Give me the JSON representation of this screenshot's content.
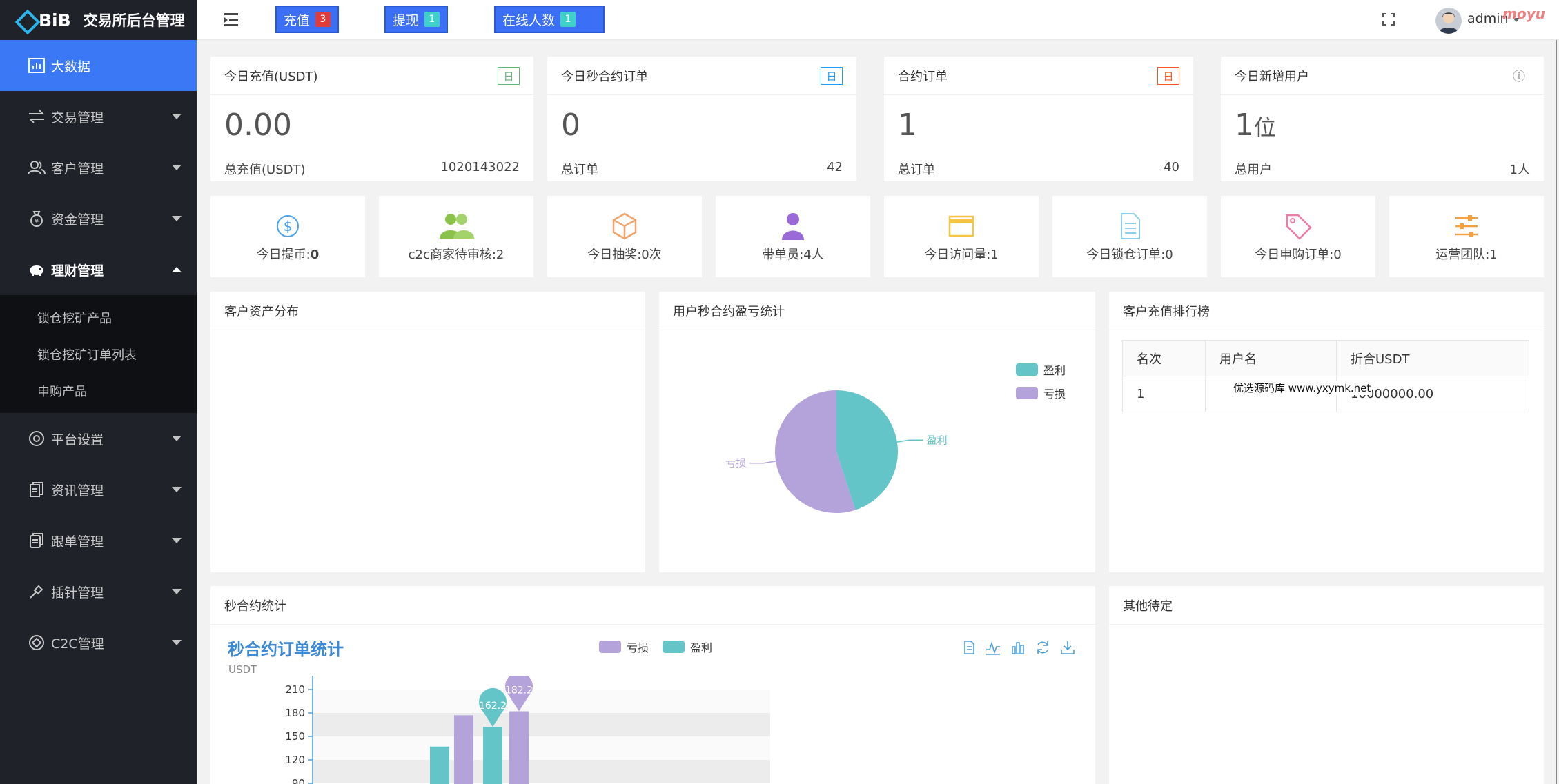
{
  "app": {
    "logo_text": "BiB",
    "title": "交易所后台管理"
  },
  "sidebar": {
    "items": [
      {
        "label": "大数据",
        "icon": "chart-icon"
      },
      {
        "label": "交易管理",
        "icon": "exchange-icon"
      },
      {
        "label": "客户管理",
        "icon": "users-icon"
      },
      {
        "label": "资金管理",
        "icon": "money-bag-icon"
      },
      {
        "label": "理财管理",
        "icon": "piggy-bank-icon"
      },
      {
        "label": "平台设置",
        "icon": "settings-icon"
      },
      {
        "label": "资讯管理",
        "icon": "news-icon"
      },
      {
        "label": "跟单管理",
        "icon": "document-icon"
      },
      {
        "label": "插针管理",
        "icon": "pin-icon"
      },
      {
        "label": "C2C管理",
        "icon": "c2c-icon"
      }
    ],
    "sub_items": [
      "锁仓挖矿产品",
      "锁仓挖矿订单列表",
      "申购产品"
    ]
  },
  "topbar": {
    "buttons": [
      {
        "label": "充值",
        "badge": "3",
        "badge_color": "#e23b3b"
      },
      {
        "label": "提现",
        "badge": "1",
        "badge_color": "#3fd1c8"
      },
      {
        "label": "在线人数",
        "badge": "1",
        "badge_color": "#3fd1c8"
      }
    ],
    "user": "admin",
    "corner_mark": "moyu"
  },
  "stats": [
    {
      "title": "今日充值(USDT)",
      "tag": "日",
      "tag_color": "#5fb878",
      "value": "0.00",
      "unit": "",
      "foot_label": "总充值(USDT)",
      "foot_value": "1020143022"
    },
    {
      "title": "今日秒合约订单",
      "tag": "日",
      "tag_color": "#1e9fff",
      "value": "0",
      "unit": "",
      "foot_label": "总订单",
      "foot_value": "42"
    },
    {
      "title": "合约订单",
      "tag": "日",
      "tag_color": "#ff5722",
      "value": "1",
      "unit": "",
      "foot_label": "总订单",
      "foot_value": "40"
    },
    {
      "title": "今日新增用户",
      "tag": "ⓘ",
      "tag_color": "#888888",
      "value": "1",
      "unit": "位",
      "foot_label": "总用户",
      "foot_value": "1人"
    }
  ],
  "mini_stats": [
    {
      "label": "今日提币:",
      "value": "0",
      "icon": "dollar-circle-icon",
      "color": "#4aa3f0"
    },
    {
      "label": "c2c商家待审核:2",
      "value": "",
      "icon": "group-icon",
      "color": "#8bc34a"
    },
    {
      "label": "今日抽奖:0次",
      "value": "",
      "icon": "box-icon",
      "color": "#f0a36b"
    },
    {
      "label": "带单员:4人",
      "value": "",
      "icon": "person-icon",
      "color": "#9b6ad9"
    },
    {
      "label": "今日访问量:1",
      "value": "",
      "icon": "card-icon",
      "color": "#f5c542"
    },
    {
      "label": "今日锁仓订单:0",
      "value": "",
      "icon": "list-doc-icon",
      "color": "#8ccfe8"
    },
    {
      "label": "今日申购订单:0",
      "value": "",
      "icon": "tag-icon",
      "color": "#f07aa8"
    },
    {
      "label": "运营团队:1",
      "value": "",
      "icon": "sliders-icon",
      "color": "#f5a142"
    }
  ],
  "panels": {
    "asset_distribution": "客户资产分布",
    "pnl_title": "用户秒合约盈亏统计",
    "ranking_title": "客户充值排行榜",
    "seconds_contract": "秒合约统计",
    "other_pending": "其他待定"
  },
  "ranking": {
    "headers": [
      "名次",
      "用户名",
      "折合USDT"
    ],
    "rows": [
      [
        "1",
        "",
        "10000000.00"
      ]
    ],
    "overlay_text": "优选源码库   www.yxymk.net"
  },
  "pie": {
    "legend": [
      "盈利",
      "亏损"
    ],
    "colors": [
      "#63c5c7",
      "#b4a2da"
    ],
    "values": [
      45,
      55
    ],
    "labels": {
      "profit": "盈利",
      "loss": "亏损"
    }
  },
  "chart_data": {
    "type": "bar",
    "title": "秒合约订单统计",
    "ylabel": "USDT",
    "legend": [
      "亏损",
      "盈利"
    ],
    "colors": {
      "亏损": "#b4a2da",
      "盈利": "#63c5c7"
    },
    "y_ticks": [
      210,
      180,
      150,
      120,
      90
    ],
    "ylim": [
      90,
      210
    ],
    "bars": [
      {
        "series": "盈利",
        "value": 137
      },
      {
        "series": "亏损",
        "value": 177
      },
      {
        "series": "盈利",
        "value": 162.2
      },
      {
        "series": "亏损",
        "value": 182.2
      }
    ],
    "markers": [
      "162.2",
      "182.2"
    ]
  }
}
